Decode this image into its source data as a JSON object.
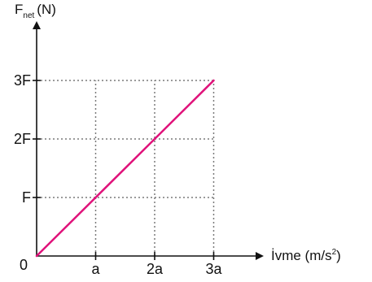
{
  "chart_data": {
    "type": "line",
    "title": "",
    "ylabel": {
      "main": "F",
      "subscript": "net",
      "unit": "(N)"
    },
    "xlabel": {
      "main": "İvme (m/s",
      "superscript": "2",
      "close": ")"
    },
    "origin_label": "0",
    "x_ticks": [
      {
        "value": 1,
        "label": "a"
      },
      {
        "value": 2,
        "label": "2a"
      },
      {
        "value": 3,
        "label": "3a"
      }
    ],
    "y_ticks": [
      {
        "value": 1,
        "label": "F"
      },
      {
        "value": 2,
        "label": "2F"
      },
      {
        "value": 3,
        "label": "3F"
      }
    ],
    "xlim": [
      0,
      3
    ],
    "ylim": [
      0,
      3
    ],
    "grid": true,
    "series": [
      {
        "x": [
          0,
          1,
          2,
          3
        ],
        "y": [
          0,
          1,
          2,
          3
        ],
        "color": "#e0127a"
      }
    ]
  }
}
